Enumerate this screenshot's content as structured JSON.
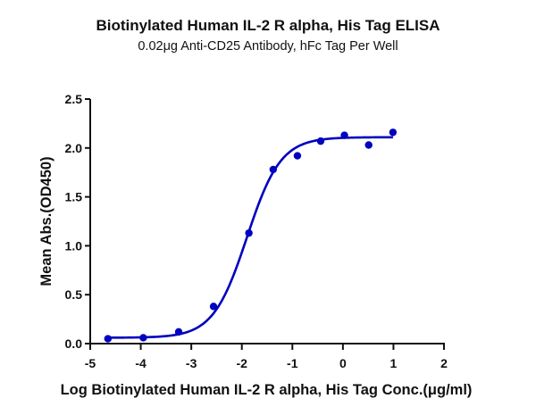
{
  "chart_data": {
    "type": "scatter",
    "title": "Biotinylated Human IL-2 R alpha, His Tag ELISA",
    "subtitle": "0.02μg Anti-CD25 Antibody, hFc Tag Per Well",
    "xlabel": "Log Biotinylated Human IL-2 R alpha, His Tag Conc.(μg/ml)",
    "ylabel": "Mean Abs.(OD450)",
    "xlim": [
      -5,
      2
    ],
    "ylim": [
      0,
      2.5
    ],
    "xticks": [
      -5,
      -4,
      -3,
      -2,
      -1,
      0,
      1,
      2
    ],
    "yticks": [
      0.0,
      0.5,
      1.0,
      1.5,
      2.0,
      2.5
    ],
    "xtick_labels": [
      "-5",
      "-4",
      "-3",
      "-2",
      "-1",
      "0",
      "1",
      "2"
    ],
    "ytick_labels": [
      "0.0",
      "0.5",
      "1.0",
      "1.5",
      "2.0",
      "2.5"
    ],
    "grid": false,
    "legend": null,
    "color": "#0000c0",
    "series": [
      {
        "name": "Mean Abs.",
        "x": [
          -4.65,
          -3.95,
          -3.25,
          -2.56,
          -1.86,
          -1.38,
          -0.9,
          -0.44,
          0.03,
          0.51,
          0.99
        ],
        "y": [
          0.05,
          0.06,
          0.12,
          0.38,
          1.13,
          1.78,
          1.92,
          2.07,
          2.13,
          2.03,
          2.16
        ]
      }
    ],
    "fit": {
      "model": "4PL sigmoid",
      "bottom": 0.06,
      "top": 2.11,
      "logEC50": -1.9,
      "hill": 1.3,
      "x_range": [
        -4.65,
        0.99
      ]
    }
  }
}
